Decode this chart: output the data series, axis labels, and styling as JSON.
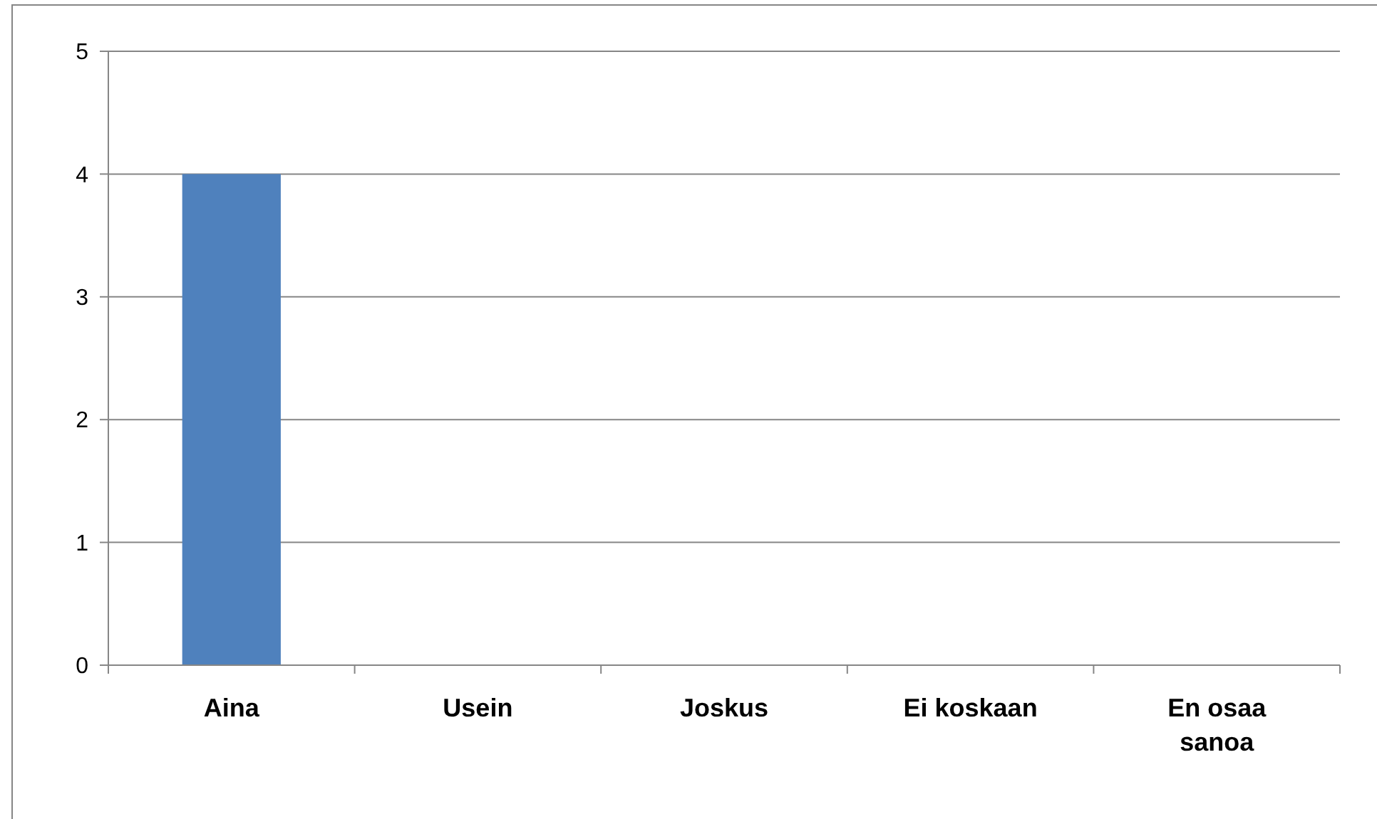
{
  "chart_data": {
    "type": "bar",
    "categories": [
      "Aina",
      "Usein",
      "Joskus",
      "Ei koskaan",
      "En osaa sanoa"
    ],
    "values": [
      4,
      0,
      0,
      0,
      0
    ],
    "color": "#4f81bd",
    "ylim": [
      0,
      5
    ],
    "yticks": [
      0,
      1,
      2,
      3,
      4,
      5
    ],
    "grid": "y"
  }
}
